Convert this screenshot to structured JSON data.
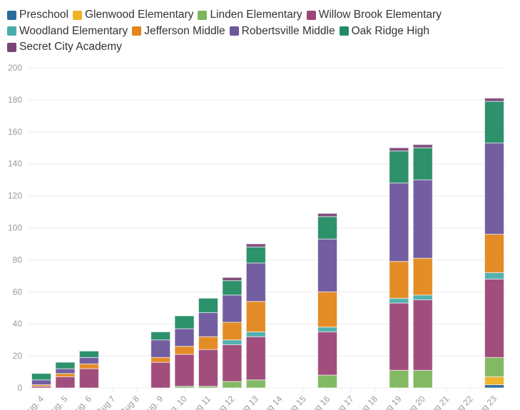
{
  "chart_data": {
    "type": "bar",
    "stacked": true,
    "title": "",
    "xlabel": "",
    "ylabel": "",
    "ylim": [
      0,
      200
    ],
    "yticks": [
      0,
      20,
      40,
      60,
      80,
      100,
      120,
      140,
      160,
      180,
      200
    ],
    "grid": true,
    "legend_position": "top-left",
    "categories": [
      "Aug. 4",
      "Aug. 5",
      "Aug. 6",
      "Aug 7",
      "Aug 8",
      "Aug. 9",
      "Aug. 10",
      "Aug 11",
      "Aug 12",
      "Aug 13",
      "Aug 14",
      "Aug 15",
      "Aug 16",
      "Aug 17",
      "Aug 18",
      "Aug 19",
      "Aug 20",
      "Aug 21",
      "Aug 22",
      "Aug 23"
    ],
    "series": [
      {
        "name": "Preschool",
        "color": "#2b6a9b",
        "values": [
          0,
          0,
          0,
          0,
          0,
          0,
          0,
          0,
          0,
          0,
          0,
          0,
          0,
          0,
          0,
          0,
          0,
          0,
          0,
          2
        ]
      },
      {
        "name": "Glenwood Elementary",
        "color": "#efb322",
        "values": [
          0,
          0,
          0,
          0,
          0,
          0,
          0,
          0,
          0,
          0,
          0,
          0,
          0,
          0,
          0,
          0,
          0,
          0,
          0,
          5
        ]
      },
      {
        "name": "Linden Elementary",
        "color": "#7cb75c",
        "values": [
          0,
          0,
          0,
          0,
          0,
          0,
          1,
          1,
          4,
          5,
          0,
          0,
          8,
          0,
          0,
          11,
          11,
          0,
          0,
          12
        ]
      },
      {
        "name": "Willow Brook Elementary",
        "color": "#9c4577",
        "values": [
          1,
          7,
          12,
          0,
          0,
          16,
          20,
          23,
          23,
          27,
          0,
          0,
          27,
          0,
          0,
          42,
          44,
          0,
          0,
          49
        ]
      },
      {
        "name": "Woodland Elementary",
        "color": "#4aadab",
        "values": [
          0,
          0,
          0,
          0,
          0,
          0,
          0,
          0,
          3,
          3,
          0,
          0,
          3,
          0,
          0,
          3,
          3,
          0,
          0,
          4
        ]
      },
      {
        "name": "Jefferson Middle",
        "color": "#e3861b",
        "values": [
          1,
          2,
          3,
          0,
          0,
          3,
          5,
          8,
          11,
          19,
          0,
          0,
          22,
          0,
          0,
          23,
          23,
          0,
          0,
          24
        ]
      },
      {
        "name": "Robertsville Middle",
        "color": "#6c569d",
        "values": [
          3,
          3,
          4,
          0,
          0,
          11,
          11,
          15,
          17,
          24,
          0,
          0,
          33,
          0,
          0,
          49,
          49,
          0,
          0,
          57
        ]
      },
      {
        "name": "Oak Ridge High",
        "color": "#228c64",
        "values": [
          4,
          4,
          4,
          0,
          0,
          5,
          8,
          9,
          9,
          10,
          0,
          0,
          14,
          0,
          0,
          20,
          20,
          0,
          0,
          26
        ]
      },
      {
        "name": "Secret City Academy",
        "color": "#7a4677",
        "values": [
          0,
          0,
          0,
          0,
          0,
          0,
          0,
          0,
          2,
          2,
          0,
          0,
          2,
          0,
          0,
          2,
          2,
          0,
          0,
          2
        ]
      }
    ]
  }
}
